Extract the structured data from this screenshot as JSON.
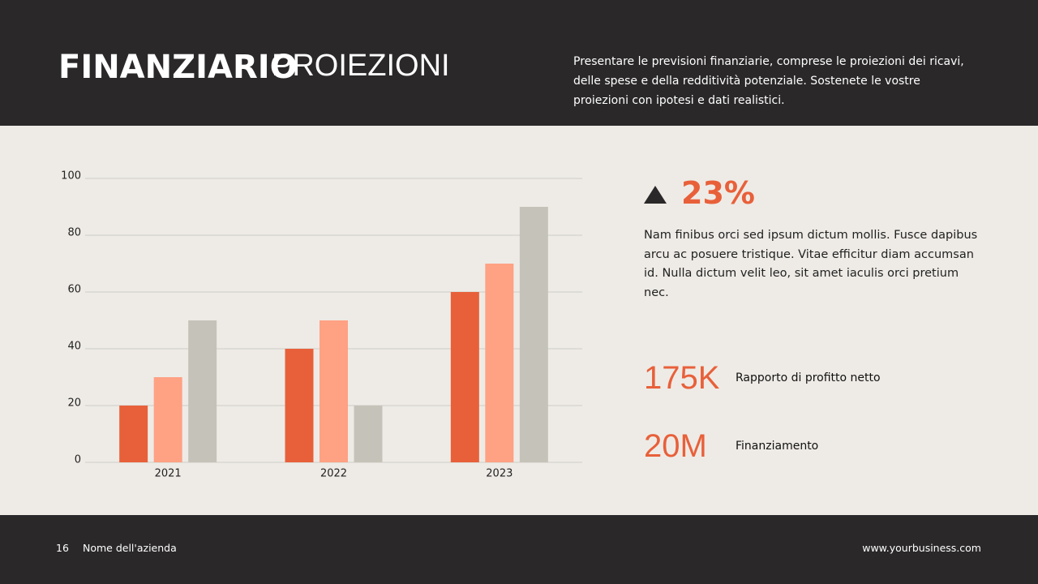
{
  "header": {
    "title_bold": "FINANZIARIO",
    "title_light": "PROIEZIONI",
    "description": "Presentare le previsioni finanziarie, comprese le proiezioni dei ricavi, delle spese e della redditività potenziale. Sostenete le vostre proiezioni con ipotesi e dati realistici."
  },
  "chart_data": {
    "type": "bar",
    "categories": [
      "2021",
      "2022",
      "2023"
    ],
    "series": [
      {
        "color": "#e8603a",
        "values": [
          20,
          40,
          60
        ]
      },
      {
        "color": "#ffa183",
        "values": [
          30,
          50,
          70
        ]
      },
      {
        "color": "#c5c3b9",
        "values": [
          50,
          20,
          90
        ]
      }
    ],
    "ylim": [
      0,
      100
    ],
    "yticks": [
      0,
      20,
      40,
      60,
      80,
      100
    ],
    "grid": true
  },
  "stats": {
    "highlight": "23%",
    "paragraph": "Nam finibus orci sed ipsum dictum mollis. Fusce dapibus arcu ac posuere tristique. Vitae efficitur diam accumsan id. Nulla dictum velit leo, sit amet iaculis orci pretium nec.",
    "items": [
      {
        "value": "175K",
        "label": "Rapporto di profitto netto"
      },
      {
        "value": "20M",
        "label": "Finanziamento"
      }
    ]
  },
  "footer": {
    "page": "16",
    "company": "Nome dell'azienda",
    "website": "www.yourbusiness.com"
  }
}
